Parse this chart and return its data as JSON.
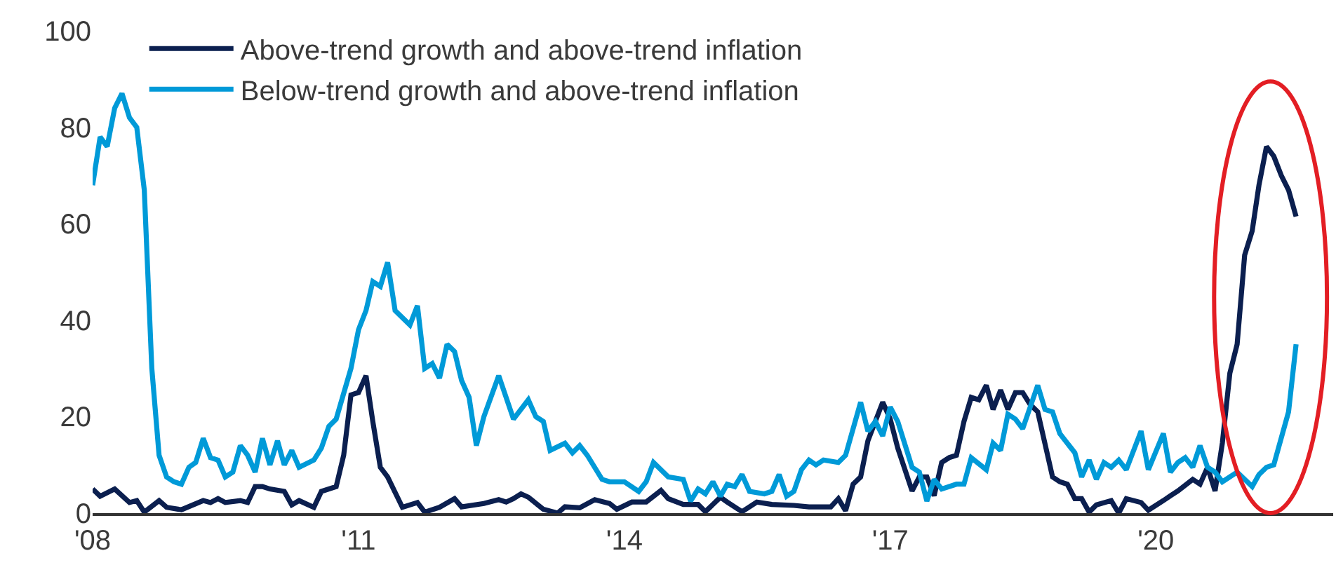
{
  "chart_data": {
    "type": "line",
    "legend": "top left",
    "marker": "none",
    "line_style": "solid",
    "xlim": [
      "2008-01-01",
      "2022-01-01"
    ],
    "xticks": [
      {
        "value": "2008-01-01",
        "label": "'08"
      },
      {
        "value": "2011-01-01",
        "label": "'11"
      },
      {
        "value": "2014-01-01",
        "label": "'14"
      },
      {
        "value": "2017-01-01",
        "label": "'17"
      },
      {
        "value": "2020-01-01",
        "label": "'20"
      }
    ],
    "ylim": [
      0,
      100
    ],
    "yticks": [
      0,
      20,
      40,
      60,
      80,
      100
    ],
    "series": [
      {
        "name": "Above-trend growth and above-trend inflation",
        "color": "#0b1f4f",
        "x": [
          "2008-01",
          "2008-02",
          "2008-04",
          "2008-06",
          "2008-07",
          "2008-08",
          "2008-10",
          "2008-11",
          "2009-01",
          "2009-04",
          "2009-05",
          "2009-06",
          "2009-07",
          "2009-09",
          "2009-10",
          "2009-11",
          "2009-12",
          "2010-01",
          "2010-03",
          "2010-04",
          "2010-05",
          "2010-07",
          "2010-08",
          "2010-10",
          "2010-11",
          "2010-12",
          "2011-01",
          "2011-02",
          "2011-03",
          "2011-04",
          "2011-05",
          "2011-07",
          "2011-09",
          "2011-10",
          "2011-12",
          "2012-02",
          "2012-03",
          "2012-06",
          "2012-08",
          "2012-09",
          "2012-10",
          "2012-11",
          "2012-12",
          "2013-02",
          "2013-04",
          "2013-05",
          "2013-07",
          "2013-09",
          "2013-11",
          "2013-12",
          "2014-02",
          "2014-04",
          "2014-06",
          "2014-07",
          "2014-09",
          "2014-11",
          "2014-12",
          "2015-02",
          "2015-03",
          "2015-05",
          "2015-07",
          "2015-09",
          "2015-12",
          "2016-02",
          "2016-05",
          "2016-06",
          "2016-07",
          "2016-08",
          "2016-09",
          "2016-10",
          "2016-12",
          "2017-01",
          "2017-02",
          "2017-04",
          "2017-05",
          "2017-06",
          "2017-07",
          "2017-08",
          "2017-09",
          "2017-10",
          "2017-11",
          "2017-12",
          "2018-01",
          "2018-02",
          "2018-03",
          "2018-04",
          "2018-05",
          "2018-06",
          "2018-07",
          "2018-08",
          "2018-09",
          "2018-11",
          "2018-12",
          "2019-01",
          "2019-02",
          "2019-03",
          "2019-04",
          "2019-05",
          "2019-07",
          "2019-08",
          "2019-09",
          "2019-11",
          "2019-12",
          "2020-02",
          "2020-03",
          "2020-04",
          "2020-06",
          "2020-07",
          "2020-08",
          "2020-09",
          "2020-10",
          "2020-11",
          "2020-12",
          "2021-01",
          "2021-02",
          "2021-03",
          "2021-04",
          "2021-05",
          "2021-06",
          "2021-07",
          "2021-08"
        ],
        "values": [
          5,
          3.5,
          5,
          2.2,
          2.6,
          0.2,
          2.6,
          1.2,
          0.7,
          2.6,
          2.2,
          3,
          2.2,
          2.6,
          2.2,
          5.5,
          5.5,
          5,
          4.5,
          1.7,
          2.6,
          1.2,
          4.5,
          5.5,
          12,
          24.5,
          25,
          28.5,
          19,
          9.5,
          7.5,
          1.2,
          2.2,
          0.2,
          1.2,
          3,
          1.3,
          2,
          2.8,
          2.3,
          3,
          4,
          3.3,
          0.8,
          0,
          1.3,
          1.1,
          2.8,
          2,
          0.8,
          2.3,
          2.3,
          4.7,
          3,
          1.8,
          1.8,
          0.3,
          3.3,
          2.3,
          0.3,
          2.3,
          1.8,
          1.6,
          1.3,
          1.3,
          3,
          0.5,
          6,
          7.5,
          15,
          23,
          19.5,
          13.5,
          4.6,
          7.5,
          7.5,
          3.6,
          10.5,
          11.5,
          12,
          19,
          24,
          23.5,
          26.5,
          21.5,
          25.5,
          21.5,
          25,
          25,
          22.5,
          21,
          7.5,
          6.5,
          6,
          3,
          3,
          0.2,
          1.7,
          2.6,
          0,
          3,
          2.2,
          0.6,
          2.6,
          3.6,
          4.6,
          7,
          6,
          9.5,
          4.6,
          14.5,
          29,
          35,
          53.5,
          58.5,
          68,
          76,
          74,
          70,
          67,
          61.5
        ]
      },
      {
        "name": "Below-trend growth and above-trend inflation",
        "color": "#009ad8",
        "x": [
          "2008-01",
          "2008-02",
          "2008-03",
          "2008-04",
          "2008-05",
          "2008-06",
          "2008-07",
          "2008-08",
          "2008-09",
          "2008-10",
          "2008-11",
          "2008-12",
          "2009-01",
          "2009-02",
          "2009-03",
          "2009-04",
          "2009-05",
          "2009-06",
          "2009-07",
          "2009-08",
          "2009-09",
          "2009-10",
          "2009-11",
          "2009-12",
          "2010-01",
          "2010-02",
          "2010-03",
          "2010-04",
          "2010-05",
          "2010-07",
          "2010-08",
          "2010-09",
          "2010-10",
          "2010-12",
          "2011-01",
          "2011-02",
          "2011-03",
          "2011-04",
          "2011-05",
          "2011-06",
          "2011-08",
          "2011-09",
          "2011-10",
          "2011-11",
          "2011-12",
          "2012-01",
          "2012-02",
          "2012-03",
          "2012-04",
          "2012-05",
          "2012-06",
          "2012-08",
          "2012-10",
          "2012-12",
          "2013-01",
          "2013-02",
          "2013-03",
          "2013-05",
          "2013-06",
          "2013-07",
          "2013-08",
          "2013-10",
          "2013-11",
          "2014-01",
          "2014-03",
          "2014-04",
          "2014-05",
          "2014-07",
          "2014-09",
          "2014-10",
          "2014-11",
          "2014-12",
          "2015-01",
          "2015-02",
          "2015-03",
          "2015-04",
          "2015-05",
          "2015-06",
          "2015-08",
          "2015-09",
          "2015-10",
          "2015-11",
          "2015-12",
          "2016-01",
          "2016-02",
          "2016-03",
          "2016-04",
          "2016-06",
          "2016-07",
          "2016-09",
          "2016-10",
          "2016-11",
          "2016-12",
          "2017-01",
          "2017-02",
          "2017-04",
          "2017-05",
          "2017-06",
          "2017-07",
          "2017-08",
          "2017-10",
          "2017-11",
          "2017-12",
          "2018-02",
          "2018-03",
          "2018-04",
          "2018-05",
          "2018-06",
          "2018-07",
          "2018-09",
          "2018-10",
          "2018-11",
          "2018-12",
          "2019-02",
          "2019-03",
          "2019-04",
          "2019-05",
          "2019-06",
          "2019-07",
          "2019-08",
          "2019-09",
          "2019-11",
          "2019-12",
          "2020-02",
          "2020-03",
          "2020-04",
          "2020-05",
          "2020-06",
          "2020-07",
          "2020-08",
          "2020-09",
          "2020-10",
          "2020-12",
          "2021-02",
          "2021-03",
          "2021-04",
          "2021-05",
          "2021-07",
          "2021-08"
        ],
        "values": [
          68,
          78,
          76,
          84,
          87,
          82,
          80,
          67,
          30,
          12,
          7.5,
          6.5,
          6,
          9.5,
          10.5,
          15.5,
          11.5,
          11,
          7.5,
          8.5,
          14,
          12,
          8.5,
          15.5,
          10,
          15,
          10,
          13,
          9.5,
          11,
          13.5,
          18,
          19.5,
          30,
          38,
          42,
          48,
          47,
          52,
          42,
          39,
          43,
          30,
          31,
          28,
          35,
          33.5,
          27.5,
          24,
          14,
          20,
          28.5,
          19.5,
          23.5,
          20,
          19,
          13,
          14.5,
          12.5,
          14,
          12,
          7,
          6.5,
          6.5,
          4.5,
          6.5,
          10.5,
          7.5,
          7,
          2.5,
          5,
          4,
          6.5,
          3.5,
          6,
          5.5,
          8,
          4.5,
          4,
          4.5,
          8,
          3.5,
          4.5,
          9,
          11,
          10,
          11,
          10.5,
          12,
          23,
          17,
          19,
          16,
          22,
          19,
          9.5,
          8.5,
          2.5,
          7,
          5,
          6,
          6,
          11.5,
          9,
          14.5,
          13,
          20.5,
          19.5,
          17.5,
          26.5,
          21.5,
          21,
          16.5,
          12.5,
          7.5,
          11,
          7,
          10.5,
          9.5,
          11,
          9,
          17,
          9,
          16.5,
          8.5,
          10.5,
          11.5,
          9.5,
          14,
          9.5,
          8.5,
          6.5,
          8.5,
          5.5,
          8,
          9.5,
          10,
          21,
          35
        ]
      }
    ]
  }
}
